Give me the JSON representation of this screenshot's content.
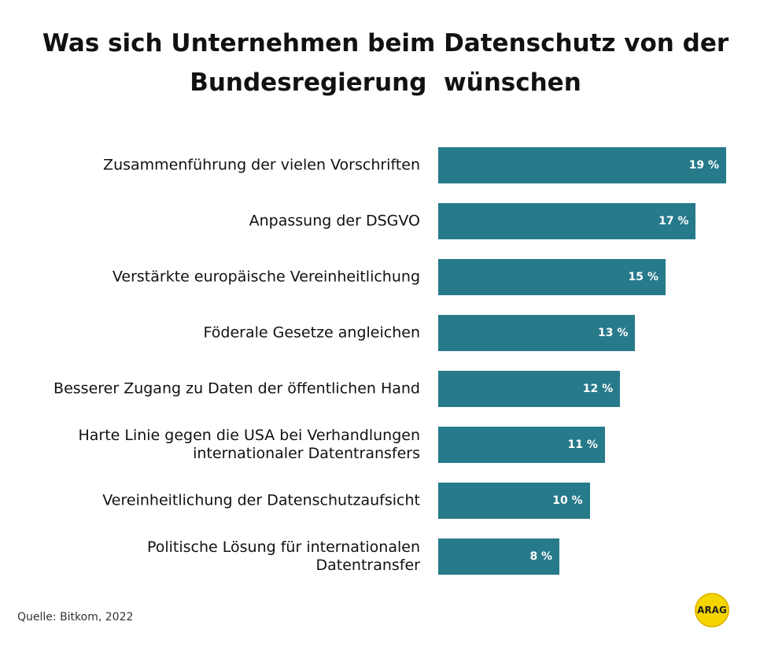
{
  "chart_data": {
    "type": "bar",
    "orientation": "horizontal",
    "title": "Was sich Unternehmen beim Datenschutz von der\nBundesregierung  wünschen",
    "categories": [
      "Zusammenführung der vielen Vorschriften",
      "Anpassung der DSGVO",
      "Verstärkte europäische Vereinheitlichung",
      "Föderale Gesetze angleichen",
      "Besserer Zugang zu Daten der öffentlichen Hand",
      "Harte Linie gegen die USA bei Verhandlungen\ninternationaler Datentransfers",
      "Vereinheitlichung der Datenschutzaufsicht",
      "Politische Lösung für internationalen\nDatentransfer"
    ],
    "values": [
      19,
      17,
      15,
      13,
      12,
      11,
      10,
      8
    ],
    "value_labels": [
      "19 %",
      "17 %",
      "15 %",
      "13 %",
      "12 %",
      "11 %",
      "10 %",
      "8 %"
    ],
    "color": "#277a8a",
    "source": "Quelle: Bitkom, 2022",
    "logo": "ARAG"
  }
}
